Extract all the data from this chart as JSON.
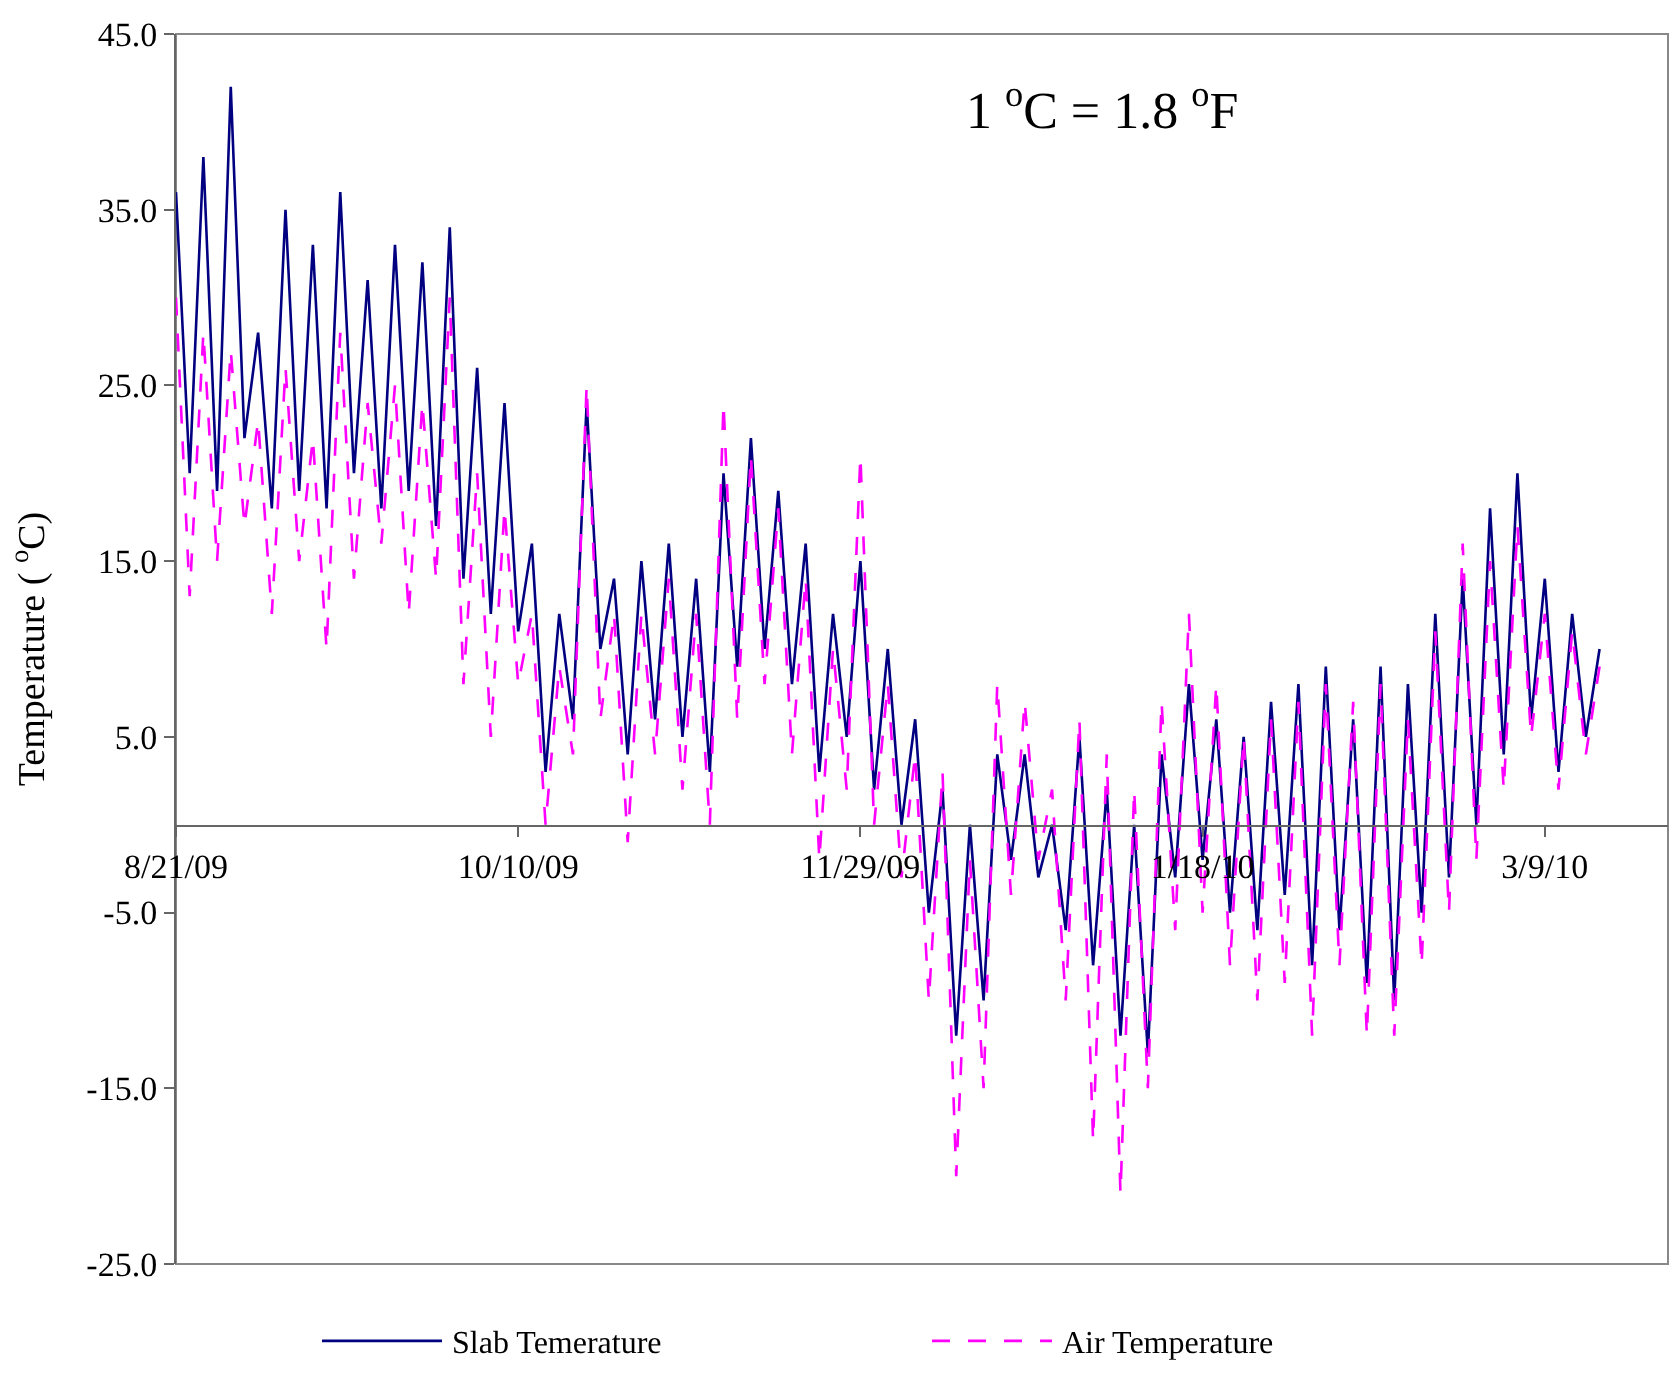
{
  "chart_data": {
    "type": "line",
    "annotations": [
      "1 $^{o}$C = 1.8 $^{o}$F"
    ],
    "ylabel": "Temperature ( $^{o}$C)",
    "x": [
      "2009-08-21",
      "2009-08-23",
      "2009-08-25",
      "2009-08-27",
      "2009-08-29",
      "2009-08-31",
      "2009-09-02",
      "2009-09-04",
      "2009-09-06",
      "2009-09-08",
      "2009-09-10",
      "2009-09-12",
      "2009-09-14",
      "2009-09-16",
      "2009-09-18",
      "2009-09-20",
      "2009-09-22",
      "2009-09-24",
      "2009-09-26",
      "2009-09-28",
      "2009-09-30",
      "2009-10-02",
      "2009-10-04",
      "2009-10-06",
      "2009-10-08",
      "2009-10-10",
      "2009-10-12",
      "2009-10-14",
      "2009-10-16",
      "2009-10-18",
      "2009-10-20",
      "2009-10-22",
      "2009-10-24",
      "2009-10-26",
      "2009-10-28",
      "2009-10-30",
      "2009-11-01",
      "2009-11-03",
      "2009-11-05",
      "2009-11-07",
      "2009-11-09",
      "2009-11-11",
      "2009-11-13",
      "2009-11-15",
      "2009-11-17",
      "2009-11-19",
      "2009-11-21",
      "2009-11-23",
      "2009-11-25",
      "2009-11-27",
      "2009-11-29",
      "2009-12-01",
      "2009-12-03",
      "2009-12-05",
      "2009-12-07",
      "2009-12-09",
      "2009-12-11",
      "2009-12-13",
      "2009-12-15",
      "2009-12-17",
      "2009-12-19",
      "2009-12-21",
      "2009-12-23",
      "2009-12-25",
      "2009-12-27",
      "2009-12-29",
      "2009-12-31",
      "2010-01-02",
      "2010-01-04",
      "2010-01-06",
      "2010-01-08",
      "2010-01-10",
      "2010-01-12",
      "2010-01-14",
      "2010-01-16",
      "2010-01-18",
      "2010-01-20",
      "2010-01-22",
      "2010-01-24",
      "2010-01-26",
      "2010-01-28",
      "2010-01-30",
      "2010-02-01",
      "2010-02-03",
      "2010-02-05",
      "2010-02-07",
      "2010-02-09",
      "2010-02-11",
      "2010-02-13",
      "2010-02-15",
      "2010-02-17",
      "2010-02-19",
      "2010-02-21",
      "2010-02-23",
      "2010-02-25",
      "2010-02-27",
      "2010-03-01",
      "2010-03-03",
      "2010-03-05",
      "2010-03-07",
      "2010-03-09",
      "2010-03-11",
      "2010-03-13",
      "2010-03-15",
      "2010-03-17"
    ],
    "series": [
      {
        "name": "Slab Temerature",
        "color": "#000080",
        "line_style": "solid",
        "values": [
          36,
          20,
          38,
          19,
          42,
          22,
          28,
          18,
          35,
          19,
          33,
          18,
          36,
          20,
          31,
          18,
          33,
          19,
          32,
          17,
          34,
          14,
          26,
          12,
          24,
          11,
          16,
          3,
          12,
          6,
          24,
          10,
          14,
          4,
          15,
          6,
          16,
          5,
          14,
          3,
          20,
          9,
          22,
          10,
          19,
          8,
          16,
          3,
          12,
          5,
          15,
          2,
          10,
          0,
          6,
          -5,
          2,
          -12,
          0,
          -10,
          4,
          -2,
          4,
          -3,
          0,
          -6,
          5,
          -8,
          2,
          -12,
          0,
          -13,
          4,
          -3,
          8,
          -2,
          6,
          -5,
          5,
          -6,
          7,
          -4,
          8,
          -8,
          9,
          -6,
          6,
          -9,
          9,
          -10,
          8,
          -5,
          12,
          -3,
          14,
          0,
          18,
          4,
          20,
          6,
          14,
          3,
          12,
          5,
          10
        ]
      },
      {
        "name": "Air Temperature",
        "color": "#ff00ff",
        "line_style": "dashed",
        "values": [
          30,
          13,
          28,
          15,
          27,
          17,
          23,
          12,
          26,
          15,
          22,
          10,
          28,
          14,
          24,
          16,
          25,
          12,
          24,
          14,
          30,
          8,
          20,
          5,
          18,
          8,
          12,
          0,
          9,
          4,
          25,
          6,
          12,
          -1,
          12,
          4,
          14,
          2,
          12,
          0,
          24,
          6,
          21,
          8,
          18,
          4,
          14,
          -2,
          10,
          2,
          21,
          0,
          8,
          -3,
          4,
          -10,
          3,
          -20,
          -2,
          -15,
          8,
          -4,
          7,
          -2,
          2,
          -10,
          6,
          -18,
          4,
          -21,
          2,
          -15,
          7,
          -6,
          12,
          -5,
          8,
          -8,
          5,
          -10,
          6,
          -9,
          7,
          -12,
          8,
          -8,
          7,
          -12,
          8,
          -12,
          6,
          -8,
          11,
          -5,
          16,
          -2,
          15,
          2,
          17,
          5,
          12,
          2,
          11,
          4,
          9
        ]
      }
    ],
    "xlim": [
      "2009-08-21",
      "2010-03-27"
    ],
    "xticks": [
      {
        "value": "2009-08-21",
        "label": "8/21/09"
      },
      {
        "value": "2009-10-10",
        "label": "10/10/09"
      },
      {
        "value": "2009-11-29",
        "label": "11/29/09"
      },
      {
        "value": "2010-01-18",
        "label": "1/18/10"
      },
      {
        "value": "2010-03-09",
        "label": "3/9/10"
      }
    ],
    "ylim": [
      -25,
      45
    ],
    "yticks": [
      {
        "value": 45,
        "label": "45.0"
      },
      {
        "value": 35,
        "label": "35.0"
      },
      {
        "value": 25,
        "label": "25.0"
      },
      {
        "value": 15,
        "label": "15.0"
      },
      {
        "value": 5,
        "label": "5.0"
      },
      {
        "value": -5,
        "label": "-5.0"
      },
      {
        "value": -15,
        "label": "-15.0"
      },
      {
        "value": -25,
        "label": "-25.0"
      }
    ],
    "grid": false,
    "legend": "bottom",
    "marker": "none"
  }
}
